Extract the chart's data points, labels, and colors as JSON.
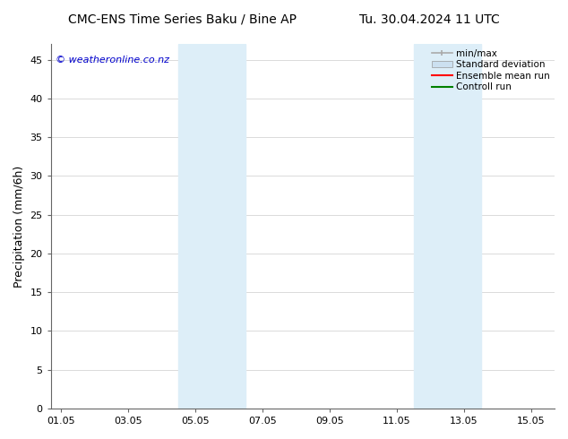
{
  "title_left": "CMC-ENS Time Series Baku / Bine AP",
  "title_right": "Tu. 30.04.2024 11 UTC",
  "ylabel": "Precipitation (mm/6h)",
  "ylim": [
    0,
    47
  ],
  "yticks": [
    0,
    5,
    10,
    15,
    20,
    25,
    30,
    35,
    40,
    45
  ],
  "xtick_labels": [
    "01.05",
    "03.05",
    "05.05",
    "07.05",
    "09.05",
    "11.05",
    "13.05",
    "15.05"
  ],
  "xtick_positions": [
    0,
    2,
    4,
    6,
    8,
    10,
    12,
    14
  ],
  "xlim": [
    -0.3,
    14.7
  ],
  "shaded_regions": [
    {
      "xmin": 3.5,
      "xmax": 5.5,
      "color": "#ddeef8"
    },
    {
      "xmin": 10.5,
      "xmax": 12.5,
      "color": "#ddeef8"
    }
  ],
  "legend_items": [
    {
      "label": "min/max",
      "color": "#aaaaaa",
      "lw": 1.2,
      "style": "line_with_caps"
    },
    {
      "label": "Standard deviation",
      "color": "#cce0f0",
      "lw": 8,
      "style": "thick"
    },
    {
      "label": "Ensemble mean run",
      "color": "#ff0000",
      "lw": 1.5,
      "style": "line"
    },
    {
      "label": "Controll run",
      "color": "#008000",
      "lw": 1.5,
      "style": "line"
    }
  ],
  "watermark": "© weatheronline.co.nz",
  "watermark_color": "#0000cc",
  "background_color": "#ffffff",
  "plot_bg_color": "#ffffff",
  "grid_color": "#cccccc",
  "title_fontsize": 10,
  "tick_fontsize": 8,
  "ylabel_fontsize": 9,
  "legend_fontsize": 7.5,
  "watermark_fontsize": 8
}
